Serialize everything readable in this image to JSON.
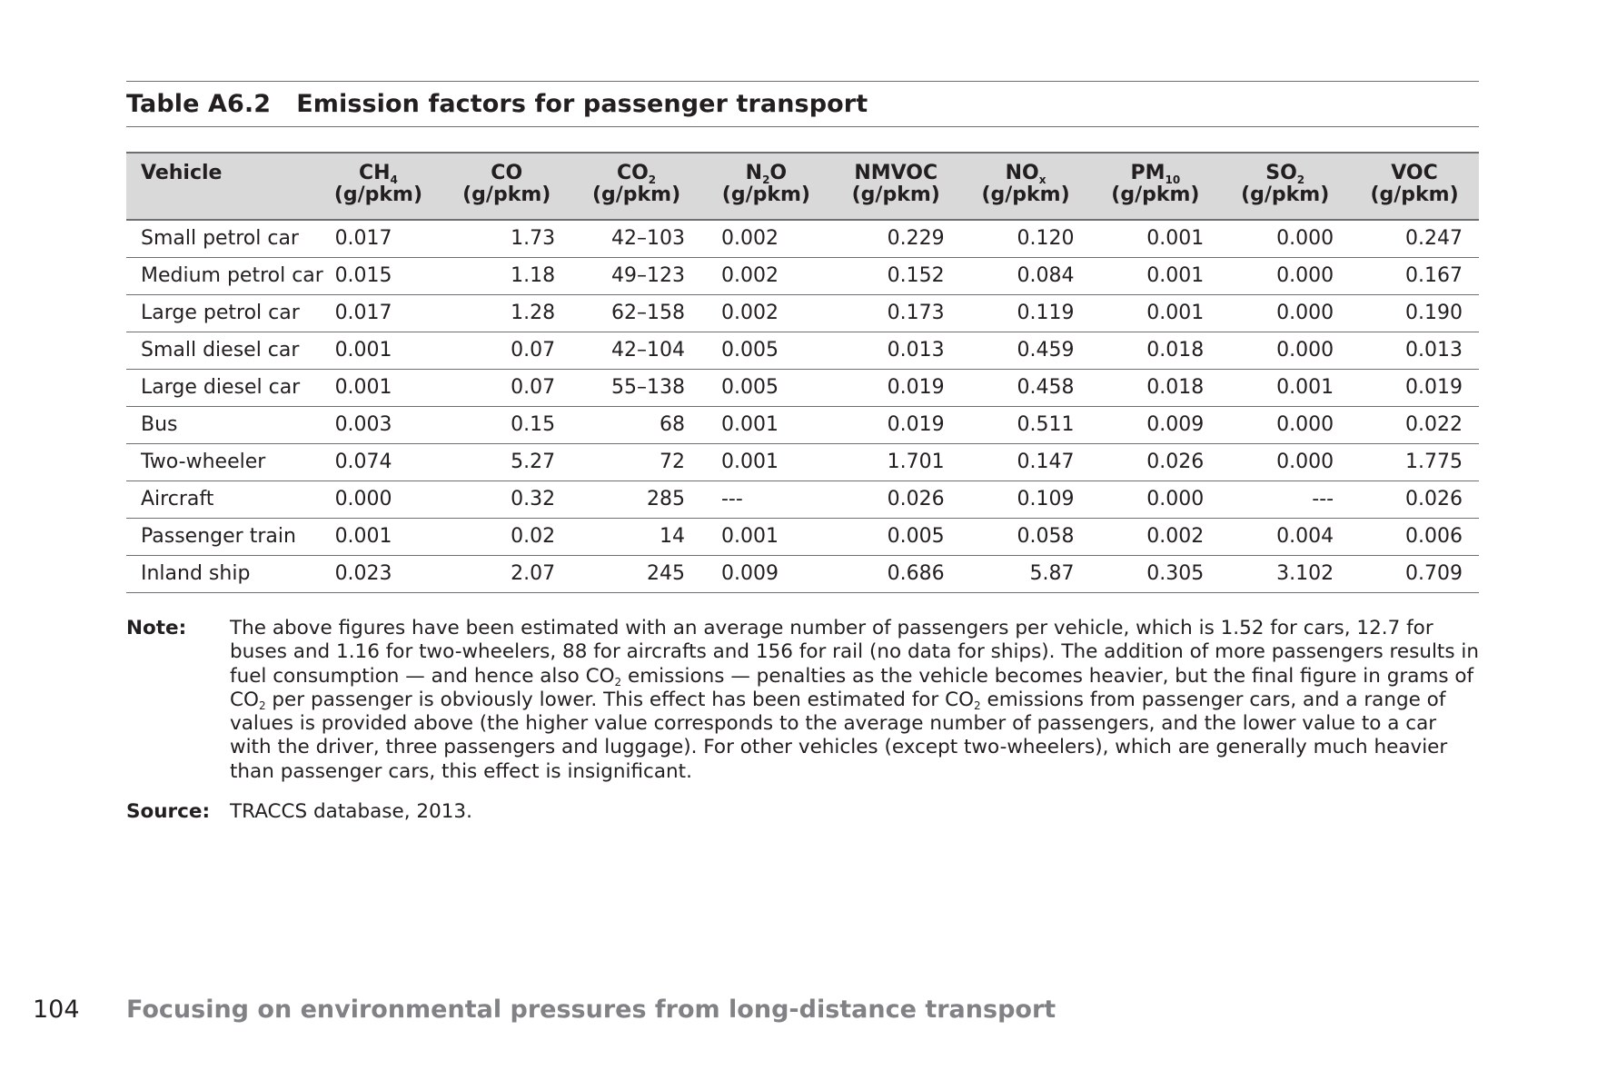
{
  "table": {
    "number": "Table A6.2",
    "title": "Emission factors for passenger transport",
    "columns": [
      {
        "name": "Vehicle",
        "sub": "",
        "after": "",
        "unit": ""
      },
      {
        "name": "CH",
        "sub": "4",
        "after": "",
        "unit": "(g/pkm)"
      },
      {
        "name": "CO",
        "sub": "",
        "after": "",
        "unit": "(g/pkm)"
      },
      {
        "name": "CO",
        "sub": "2",
        "after": "",
        "unit": "(g/pkm)"
      },
      {
        "name": "N",
        "sub": "2",
        "after": "O",
        "unit": "(g/pkm)"
      },
      {
        "name": "NMVOC",
        "sub": "",
        "after": "",
        "unit": "(g/pkm)"
      },
      {
        "name": "NO",
        "sub": "x",
        "after": "",
        "unit": "(g/pkm)"
      },
      {
        "name": "PM",
        "sub": "10",
        "after": "",
        "unit": "(g/pkm)"
      },
      {
        "name": "SO",
        "sub": "2",
        "after": "",
        "unit": "(g/pkm)"
      },
      {
        "name": "VOC",
        "sub": "",
        "after": "",
        "unit": "(g/pkm)"
      }
    ],
    "rows": [
      [
        "Small petrol car",
        "0.017",
        "1.73",
        "42–103",
        "0.002",
        "0.229",
        "0.120",
        "0.001",
        "0.000",
        "0.247"
      ],
      [
        "Medium petrol car",
        "0.015",
        "1.18",
        "49–123",
        "0.002",
        "0.152",
        "0.084",
        "0.001",
        "0.000",
        "0.167"
      ],
      [
        "Large petrol car",
        "0.017",
        "1.28",
        "62–158",
        "0.002",
        "0.173",
        "0.119",
        "0.001",
        "0.000",
        "0.190"
      ],
      [
        "Small diesel car",
        "0.001",
        "0.07",
        "42–104",
        "0.005",
        "0.013",
        "0.459",
        "0.018",
        "0.000",
        "0.013"
      ],
      [
        "Large diesel car",
        "0.001",
        "0.07",
        "55–138",
        "0.005",
        "0.019",
        "0.458",
        "0.018",
        "0.001",
        "0.019"
      ],
      [
        "Bus",
        "0.003",
        "0.15",
        "68",
        "0.001",
        "0.019",
        "0.511",
        "0.009",
        "0.000",
        "0.022"
      ],
      [
        "Two-wheeler",
        "0.074",
        "5.27",
        "72",
        "0.001",
        "1.701",
        "0.147",
        "0.026",
        "0.000",
        "1.775"
      ],
      [
        "Aircraft",
        "0.000",
        "0.32",
        "285",
        "---",
        "0.026",
        "0.109",
        "0.000",
        "---",
        "0.026"
      ],
      [
        "Passenger train",
        "0.001",
        "0.02",
        "14",
        "0.001",
        "0.005",
        "0.058",
        "0.002",
        "0.004",
        "0.006"
      ],
      [
        "Inland ship",
        "0.023",
        "2.07",
        "245",
        "0.009",
        "0.686",
        "5.87",
        "0.305",
        "3.102",
        "0.709"
      ]
    ]
  },
  "note": {
    "label": "Note:",
    "parts": [
      "The above figures have been estimated with an average number of passengers per vehicle, which is 1.52 for cars, 12.7 for buses and 1.16 for two-wheelers, 88 for aircrafts and 156 for rail (no data for ships). The addition of more passengers results in fuel consumption — and hence also CO",
      "2",
      " emissions — penalties as the vehicle becomes heavier, but the final figure in grams of CO",
      "2",
      " per passenger is obviously lower. This effect has been estimated for CO",
      "2",
      " emissions from passenger cars, and a range of values is provided above (the higher value corresponds to the average number of passengers, and the lower value to a car with the driver, three passengers and luggage). For other vehicles (except two-wheelers), which are generally much heavier than passenger cars, this effect is insignificant."
    ]
  },
  "source": {
    "label": "Source:",
    "text": "TRACCS database, 2013."
  },
  "footer": {
    "page_number": "104",
    "title": "Focusing on environmental pressures from long-distance transport"
  }
}
